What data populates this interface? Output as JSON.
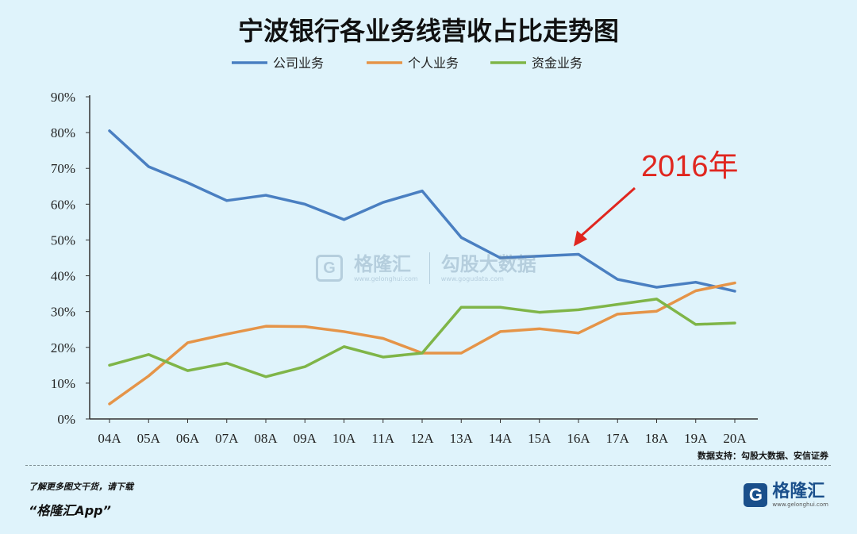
{
  "title": "宁波银行各业务线营收占比走势图",
  "chart_data": {
    "type": "line",
    "title": "宁波银行各业务线营收占比走势图",
    "categories": [
      "04A",
      "05A",
      "06A",
      "07A",
      "08A",
      "09A",
      "10A",
      "11A",
      "12A",
      "13A",
      "14A",
      "15A",
      "16A",
      "17A",
      "18A",
      "19A",
      "20A"
    ],
    "ylim": [
      0,
      90
    ],
    "yticks": [
      "0%",
      "10%",
      "20%",
      "30%",
      "40%",
      "50%",
      "60%",
      "70%",
      "80%",
      "90%"
    ],
    "legend_position": "top",
    "grid": false,
    "series": [
      {
        "name": "公司业务",
        "color": "#4a7fc1",
        "values": [
          80.5,
          70.5,
          66,
          61,
          62.5,
          60,
          55.7,
          60.5,
          63.7,
          50.7,
          45,
          45.5,
          46,
          39,
          36.8,
          38.2,
          35.7
        ]
      },
      {
        "name": "个人业务",
        "color": "#e59448",
        "values": [
          4.2,
          12,
          21.3,
          23.7,
          25.9,
          25.8,
          24.4,
          22.5,
          18.4,
          18.4,
          24.4,
          25.2,
          24,
          29.3,
          30.1,
          35.8,
          38
        ]
      },
      {
        "name": "资金业务",
        "color": "#7fb548",
        "values": [
          15,
          18,
          13.5,
          15.6,
          11.8,
          14.6,
          20.2,
          17.3,
          18.4,
          31.2,
          31.2,
          29.8,
          30.5,
          32,
          33.5,
          26.4,
          26.8
        ]
      }
    ],
    "annotation": {
      "text": "2016年",
      "category": "16A"
    }
  },
  "source": "数据支持：勾股大数据、安信证券",
  "promo": "了解更多图文干货，请下载",
  "app_name": "“格隆汇App”",
  "logo": {
    "name": "格隆汇",
    "sub": "www.gelonghui.com"
  },
  "watermark": {
    "left": "格隆汇",
    "left_sub": "www.gelonghui.com",
    "right": "勾股大数据",
    "right_sub": "www.gogudata.com"
  }
}
